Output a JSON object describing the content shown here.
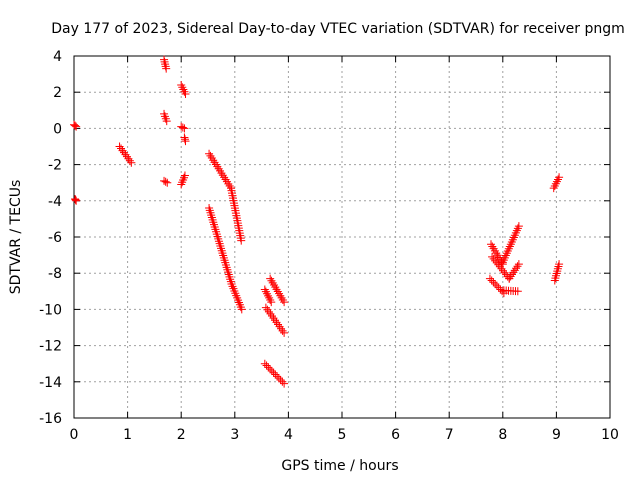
{
  "chart_data": {
    "type": "scatter",
    "title": "Day 177 of 2023, Sidereal Day-to-day VTEC variation (SDTVAR) for receiver pngm",
    "xlabel": "GPS time / hours",
    "ylabel": "SDTVAR / TECUs",
    "xlim": [
      0,
      10
    ],
    "ylim": [
      -16,
      4
    ],
    "xticks": [
      0,
      1,
      2,
      3,
      4,
      5,
      6,
      7,
      8,
      9,
      10
    ],
    "yticks": [
      -16,
      -14,
      -12,
      -10,
      -8,
      -6,
      -4,
      -2,
      0,
      2,
      4
    ],
    "grid": true,
    "marker": "+",
    "colors": {
      "points": "#ff0000",
      "axes": "#000000",
      "grid": "#a0a0a0"
    },
    "segments": [
      {
        "x": [
          0.0,
          0.04
        ],
        "y": [
          0.2,
          0.1
        ]
      },
      {
        "x": [
          0.02,
          0.04
        ],
        "y": [
          -3.9,
          -4.0
        ]
      },
      {
        "x": [
          0.85,
          1.07
        ],
        "y": [
          -1.0,
          -1.9
        ]
      },
      {
        "x": [
          1.68,
          1.74
        ],
        "y": [
          -2.9,
          -3.0
        ]
      },
      {
        "x": [
          1.68,
          1.73
        ],
        "y": [
          0.8,
          0.4
        ]
      },
      {
        "x": [
          1.68,
          1.72
        ],
        "y": [
          3.8,
          3.3
        ]
      },
      {
        "x": [
          2.0,
          2.06
        ],
        "y": [
          0.1,
          0.0
        ]
      },
      {
        "x": [
          2.06,
          2.08
        ],
        "y": [
          -0.5,
          -0.7
        ]
      },
      {
        "x": [
          2.0,
          2.08
        ],
        "y": [
          2.4,
          1.9
        ]
      },
      {
        "x": [
          2.0,
          2.07
        ],
        "y": [
          -3.1,
          -2.6
        ]
      },
      {
        "x": [
          2.52,
          2.93
        ],
        "y": [
          -1.4,
          -3.3
        ]
      },
      {
        "x": [
          2.93,
          3.12
        ],
        "y": [
          -3.3,
          -6.2
        ]
      },
      {
        "x": [
          2.52,
          2.94
        ],
        "y": [
          -4.4,
          -8.6
        ]
      },
      {
        "x": [
          2.94,
          3.13
        ],
        "y": [
          -8.6,
          -10.0
        ]
      },
      {
        "x": [
          3.56,
          3.68
        ],
        "y": [
          -8.9,
          -9.6
        ]
      },
      {
        "x": [
          3.66,
          3.92
        ],
        "y": [
          -8.3,
          -9.6
        ]
      },
      {
        "x": [
          3.58,
          3.92
        ],
        "y": [
          -9.9,
          -11.3
        ]
      },
      {
        "x": [
          3.56,
          3.92
        ],
        "y": [
          -13.0,
          -14.1
        ]
      },
      {
        "x": [
          7.76,
          8.02
        ],
        "y": [
          -8.3,
          -9.1
        ]
      },
      {
        "x": [
          8.02,
          8.28
        ],
        "y": [
          -8.95,
          -9.0
        ]
      },
      {
        "x": [
          7.78,
          8.0
        ],
        "y": [
          -6.4,
          -7.5
        ]
      },
      {
        "x": [
          7.8,
          8.12
        ],
        "y": [
          -7.1,
          -8.3
        ]
      },
      {
        "x": [
          8.12,
          8.3
        ],
        "y": [
          -8.3,
          -7.5
        ]
      },
      {
        "x": [
          8.0,
          8.3
        ],
        "y": [
          -7.4,
          -5.4
        ]
      },
      {
        "x": [
          8.95,
          9.05
        ],
        "y": [
          -3.3,
          -2.7
        ]
      },
      {
        "x": [
          8.97,
          9.05
        ],
        "y": [
          -8.4,
          -7.5
        ]
      }
    ]
  }
}
